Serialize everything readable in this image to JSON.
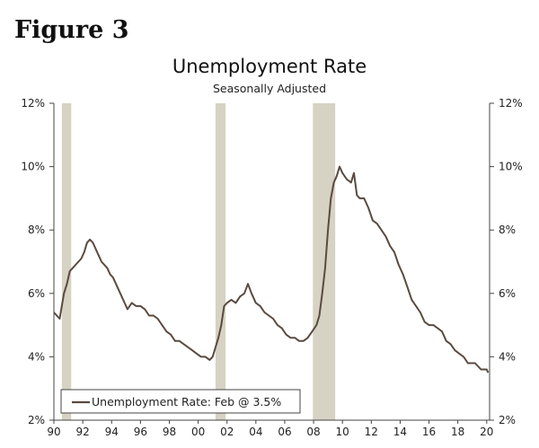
{
  "figure_label": "Figure 3",
  "chart_data": {
    "type": "line",
    "title": "Unemployment Rate",
    "subtitle": "Seasonally Adjusted",
    "xlabel": "",
    "ylabel": "",
    "xlim": [
      1990,
      2020.2
    ],
    "ylim": [
      2,
      12
    ],
    "x_ticks": [
      "90",
      "92",
      "94",
      "96",
      "98",
      "00",
      "02",
      "04",
      "06",
      "08",
      "10",
      "12",
      "14",
      "16",
      "18",
      "20"
    ],
    "y_ticks": [
      "2%",
      "4%",
      "6%",
      "8%",
      "10%",
      "12%"
    ],
    "grid": false,
    "legend": {
      "label": "Unemployment Rate: Feb @ 3.5%",
      "position": "bottom-left"
    },
    "recessions": [
      [
        1990.55,
        1991.2
      ],
      [
        2001.2,
        2001.9
      ],
      [
        2007.95,
        2009.5
      ]
    ],
    "colors": {
      "line": "#5a4a40",
      "recession": "#d6d2c4",
      "axis": "#444444"
    },
    "series": [
      {
        "x": [
          1990.0,
          1990.2,
          1990.4,
          1990.55,
          1990.7,
          1990.9,
          1991.1,
          1991.3,
          1991.5,
          1991.7,
          1991.9,
          1992.1,
          1992.3,
          1992.5,
          1992.7,
          1992.9,
          1993.1,
          1993.3,
          1993.5,
          1993.7,
          1993.9,
          1994.1,
          1994.3,
          1994.5,
          1994.7,
          1994.9,
          1995.1,
          1995.4,
          1995.7,
          1996.0,
          1996.3,
          1996.6,
          1996.9,
          1997.2,
          1997.5,
          1997.8,
          1998.1,
          1998.4,
          1998.7,
          1999.0,
          1999.3,
          1999.6,
          1999.9,
          2000.2,
          2000.5,
          2000.8,
          2001.0,
          2001.2,
          2001.4,
          2001.6,
          2001.8,
          2002.0,
          2002.3,
          2002.6,
          2002.9,
          2003.2,
          2003.45,
          2003.7,
          2004.0,
          2004.3,
          2004.6,
          2004.9,
          2005.2,
          2005.5,
          2005.8,
          2006.1,
          2006.4,
          2006.7,
          2007.0,
          2007.3,
          2007.6,
          2007.9,
          2008.2,
          2008.4,
          2008.6,
          2008.8,
          2009.0,
          2009.2,
          2009.4,
          2009.6,
          2009.8,
          2010.0,
          2010.3,
          2010.6,
          2010.8,
          2011.0,
          2011.2,
          2011.5,
          2011.8,
          2012.1,
          2012.4,
          2012.7,
          2013.0,
          2013.3,
          2013.6,
          2013.9,
          2014.2,
          2014.5,
          2014.8,
          2015.1,
          2015.4,
          2015.7,
          2016.0,
          2016.3,
          2016.6,
          2016.9,
          2017.2,
          2017.5,
          2017.8,
          2018.1,
          2018.4,
          2018.7,
          2019.0,
          2019.2,
          2019.4,
          2019.6,
          2019.8,
          2020.0,
          2020.1
        ],
        "values": [
          5.4,
          5.3,
          5.2,
          5.6,
          6.0,
          6.3,
          6.7,
          6.8,
          6.9,
          7.0,
          7.1,
          7.3,
          7.6,
          7.7,
          7.6,
          7.4,
          7.2,
          7.0,
          6.9,
          6.8,
          6.6,
          6.5,
          6.3,
          6.1,
          5.9,
          5.7,
          5.5,
          5.7,
          5.6,
          5.6,
          5.5,
          5.3,
          5.3,
          5.2,
          5.0,
          4.8,
          4.7,
          4.5,
          4.5,
          4.4,
          4.3,
          4.2,
          4.1,
          4.0,
          4.0,
          3.9,
          4.0,
          4.3,
          4.6,
          5.0,
          5.6,
          5.7,
          5.8,
          5.7,
          5.9,
          6.0,
          6.3,
          6.0,
          5.7,
          5.6,
          5.4,
          5.3,
          5.2,
          5.0,
          4.9,
          4.7,
          4.6,
          4.6,
          4.5,
          4.5,
          4.6,
          4.8,
          5.0,
          5.3,
          6.0,
          6.8,
          8.0,
          9.0,
          9.5,
          9.7,
          10.0,
          9.8,
          9.6,
          9.5,
          9.8,
          9.1,
          9.0,
          9.0,
          8.7,
          8.3,
          8.2,
          8.0,
          7.8,
          7.5,
          7.3,
          6.9,
          6.6,
          6.2,
          5.8,
          5.6,
          5.4,
          5.1,
          5.0,
          5.0,
          4.9,
          4.8,
          4.5,
          4.4,
          4.2,
          4.1,
          4.0,
          3.8,
          3.8,
          3.8,
          3.7,
          3.6,
          3.6,
          3.6,
          3.5
        ]
      }
    ]
  }
}
